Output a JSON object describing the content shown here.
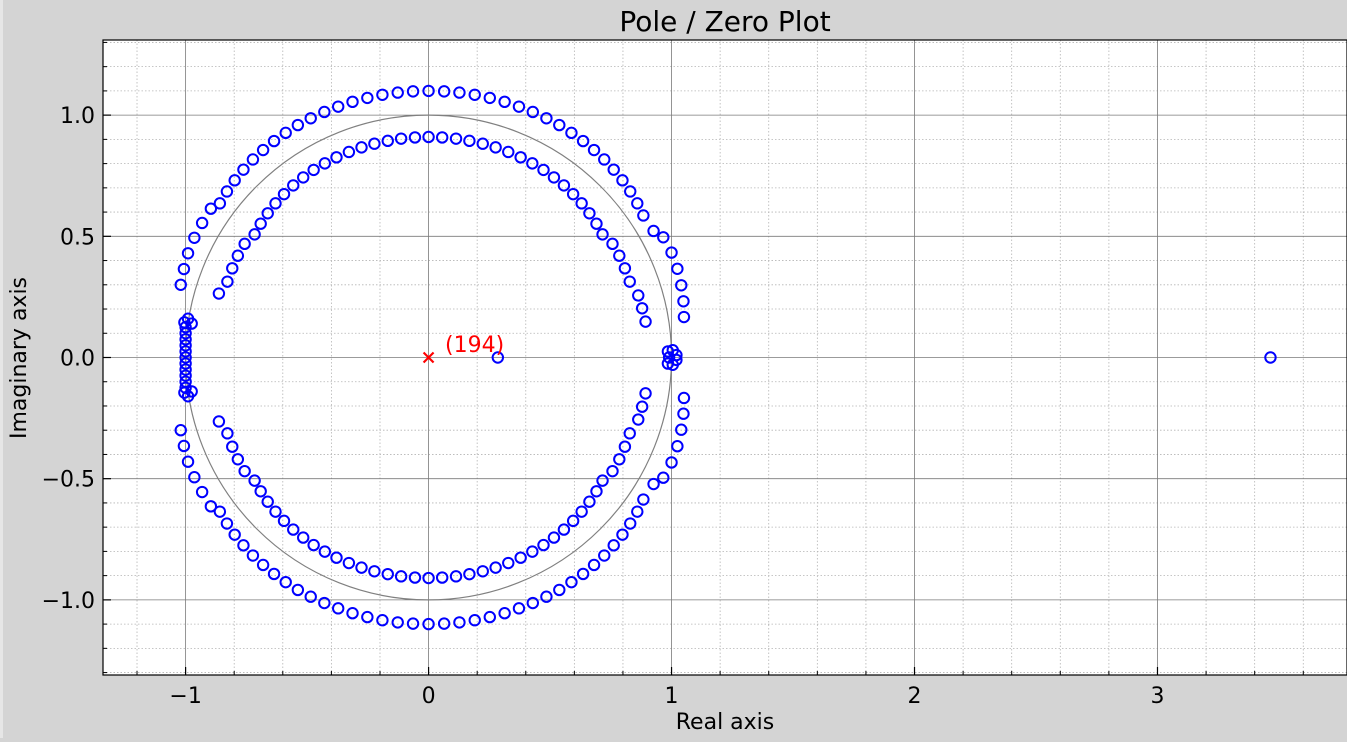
{
  "chart_data": {
    "type": "scatter",
    "title": "Pole / Zero Plot",
    "xlabel": "Real axis",
    "ylabel": "Imaginary axis",
    "xlim": [
      -1.34,
      3.78
    ],
    "ylim": [
      -1.31,
      1.31
    ],
    "x_ticks": [
      {
        "value": -1,
        "label": "−1"
      },
      {
        "value": 0,
        "label": "0"
      },
      {
        "value": 1,
        "label": "1"
      },
      {
        "value": 2,
        "label": "2"
      },
      {
        "value": 3,
        "label": "3"
      }
    ],
    "y_ticks": [
      {
        "value": -1.0,
        "label": "−1.0"
      },
      {
        "value": -0.5,
        "label": "−0.5"
      },
      {
        "value": 0.0,
        "label": "0.0"
      },
      {
        "value": 0.5,
        "label": "0.5"
      },
      {
        "value": 1.0,
        "label": "1.0"
      }
    ],
    "grid": true,
    "minor_grid": true,
    "unit_circle": true,
    "colors": {
      "zeros": "#0000ff",
      "poles": "#ff0000",
      "unit_circle": "#808080",
      "grid_major": "#7a7a7a",
      "grid_minor": "#b4b4b4",
      "figure_background": "#d4d4d4",
      "plot_background": "#ffffff"
    },
    "series": [
      {
        "marker": "circle",
        "points": [
          [
            -0.0,
            1.1
          ],
          [
            0.064,
            1.098
          ],
          [
            0.127,
            1.093
          ],
          [
            0.19,
            1.084
          ],
          [
            0.252,
            1.071
          ],
          [
            0.313,
            1.055
          ],
          [
            0.372,
            1.035
          ],
          [
            0.429,
            1.013
          ],
          [
            0.485,
            0.987
          ],
          [
            0.538,
            0.959
          ],
          [
            0.588,
            0.927
          ],
          [
            0.636,
            0.893
          ],
          [
            0.681,
            0.856
          ],
          [
            0.723,
            0.817
          ],
          [
            0.762,
            0.775
          ],
          [
            0.798,
            0.731
          ],
          [
            0.83,
            0.685
          ],
          [
            0.859,
            0.636
          ],
          [
            0.884,
            0.586
          ],
          [
            0.926,
            0.522
          ],
          [
            0.966,
            0.496
          ],
          [
            1.0,
            0.433
          ],
          [
            1.024,
            0.366
          ],
          [
            1.04,
            0.298
          ],
          [
            1.049,
            0.232
          ],
          [
            1.051,
            0.167
          ],
          [
            0.0,
            0.91
          ],
          [
            0.056,
            0.908
          ],
          [
            0.113,
            0.903
          ],
          [
            0.168,
            0.894
          ],
          [
            0.223,
            0.882
          ],
          [
            0.276,
            0.867
          ],
          [
            0.328,
            0.848
          ],
          [
            0.379,
            0.826
          ],
          [
            0.427,
            0.801
          ],
          [
            0.473,
            0.774
          ],
          [
            0.516,
            0.743
          ],
          [
            0.557,
            0.71
          ],
          [
            0.595,
            0.674
          ],
          [
            0.63,
            0.636
          ],
          [
            0.662,
            0.595
          ],
          [
            0.691,
            0.552
          ],
          [
            0.716,
            0.508
          ],
          [
            0.757,
            0.469
          ],
          [
            0.785,
            0.42
          ],
          [
            0.808,
            0.368
          ],
          [
            0.828,
            0.313
          ],
          [
            0.863,
            0.256
          ],
          [
            0.879,
            0.203
          ],
          [
            0.893,
            0.148
          ],
          [
            -0.056,
            0.908
          ],
          [
            -0.113,
            0.903
          ],
          [
            -0.168,
            0.894
          ],
          [
            -0.223,
            0.882
          ],
          [
            -0.276,
            0.867
          ],
          [
            -0.328,
            0.848
          ],
          [
            -0.379,
            0.826
          ],
          [
            -0.427,
            0.801
          ],
          [
            -0.473,
            0.774
          ],
          [
            -0.516,
            0.743
          ],
          [
            -0.557,
            0.71
          ],
          [
            -0.595,
            0.674
          ],
          [
            -0.63,
            0.636
          ],
          [
            -0.662,
            0.595
          ],
          [
            -0.691,
            0.552
          ],
          [
            -0.716,
            0.508
          ],
          [
            -0.757,
            0.469
          ],
          [
            -0.785,
            0.42
          ],
          [
            -0.808,
            0.368
          ],
          [
            -0.828,
            0.313
          ],
          [
            -0.863,
            0.264
          ],
          [
            -0.064,
            1.098
          ],
          [
            -0.127,
            1.093
          ],
          [
            -0.19,
            1.084
          ],
          [
            -0.252,
            1.071
          ],
          [
            -0.313,
            1.055
          ],
          [
            -0.372,
            1.035
          ],
          [
            -0.429,
            1.013
          ],
          [
            -0.485,
            0.987
          ],
          [
            -0.538,
            0.959
          ],
          [
            -0.588,
            0.927
          ],
          [
            -0.636,
            0.893
          ],
          [
            -0.681,
            0.856
          ],
          [
            -0.723,
            0.817
          ],
          [
            -0.762,
            0.775
          ],
          [
            -0.798,
            0.731
          ],
          [
            -0.83,
            0.685
          ],
          [
            -0.859,
            0.636
          ],
          [
            -0.896,
            0.614
          ],
          [
            -0.932,
            0.555
          ],
          [
            -0.964,
            0.494
          ],
          [
            -0.99,
            0.43
          ],
          [
            -1.007,
            0.365
          ],
          [
            -1.02,
            0.3
          ],
          [
            -0.0,
            -1.1
          ],
          [
            0.064,
            -1.098
          ],
          [
            0.127,
            -1.093
          ],
          [
            0.19,
            -1.084
          ],
          [
            0.252,
            -1.071
          ],
          [
            0.313,
            -1.055
          ],
          [
            0.372,
            -1.035
          ],
          [
            0.429,
            -1.013
          ],
          [
            0.485,
            -0.987
          ],
          [
            0.538,
            -0.959
          ],
          [
            0.588,
            -0.927
          ],
          [
            0.636,
            -0.893
          ],
          [
            0.681,
            -0.856
          ],
          [
            0.723,
            -0.817
          ],
          [
            0.762,
            -0.775
          ],
          [
            0.798,
            -0.731
          ],
          [
            0.83,
            -0.685
          ],
          [
            0.859,
            -0.636
          ],
          [
            0.884,
            -0.586
          ],
          [
            0.926,
            -0.522
          ],
          [
            0.966,
            -0.496
          ],
          [
            1.0,
            -0.433
          ],
          [
            1.024,
            -0.366
          ],
          [
            1.04,
            -0.298
          ],
          [
            1.049,
            -0.232
          ],
          [
            1.051,
            -0.167
          ],
          [
            0.0,
            -0.91
          ],
          [
            0.056,
            -0.908
          ],
          [
            0.113,
            -0.903
          ],
          [
            0.168,
            -0.894
          ],
          [
            0.223,
            -0.882
          ],
          [
            0.276,
            -0.867
          ],
          [
            0.328,
            -0.848
          ],
          [
            0.379,
            -0.826
          ],
          [
            0.427,
            -0.801
          ],
          [
            0.473,
            -0.774
          ],
          [
            0.516,
            -0.743
          ],
          [
            0.557,
            -0.71
          ],
          [
            0.595,
            -0.674
          ],
          [
            0.63,
            -0.636
          ],
          [
            0.662,
            -0.595
          ],
          [
            0.691,
            -0.552
          ],
          [
            0.716,
            -0.508
          ],
          [
            0.757,
            -0.469
          ],
          [
            0.785,
            -0.42
          ],
          [
            0.808,
            -0.368
          ],
          [
            0.828,
            -0.313
          ],
          [
            0.863,
            -0.256
          ],
          [
            0.879,
            -0.203
          ],
          [
            0.893,
            -0.148
          ],
          [
            -0.056,
            -0.908
          ],
          [
            -0.113,
            -0.903
          ],
          [
            -0.168,
            -0.894
          ],
          [
            -0.223,
            -0.882
          ],
          [
            -0.276,
            -0.867
          ],
          [
            -0.328,
            -0.848
          ],
          [
            -0.379,
            -0.826
          ],
          [
            -0.427,
            -0.801
          ],
          [
            -0.473,
            -0.774
          ],
          [
            -0.516,
            -0.743
          ],
          [
            -0.557,
            -0.71
          ],
          [
            -0.595,
            -0.674
          ],
          [
            -0.63,
            -0.636
          ],
          [
            -0.662,
            -0.595
          ],
          [
            -0.691,
            -0.552
          ],
          [
            -0.716,
            -0.508
          ],
          [
            -0.757,
            -0.469
          ],
          [
            -0.785,
            -0.42
          ],
          [
            -0.808,
            -0.368
          ],
          [
            -0.828,
            -0.313
          ],
          [
            -0.863,
            -0.264
          ],
          [
            -0.064,
            -1.098
          ],
          [
            -0.127,
            -1.093
          ],
          [
            -0.19,
            -1.084
          ],
          [
            -0.252,
            -1.071
          ],
          [
            -0.313,
            -1.055
          ],
          [
            -0.372,
            -1.035
          ],
          [
            -0.429,
            -1.013
          ],
          [
            -0.485,
            -0.987
          ],
          [
            -0.538,
            -0.959
          ],
          [
            -0.588,
            -0.927
          ],
          [
            -0.636,
            -0.893
          ],
          [
            -0.681,
            -0.856
          ],
          [
            -0.723,
            -0.817
          ],
          [
            -0.762,
            -0.775
          ],
          [
            -0.798,
            -0.731
          ],
          [
            -0.83,
            -0.685
          ],
          [
            -0.859,
            -0.636
          ],
          [
            -0.896,
            -0.614
          ],
          [
            -0.932,
            -0.555
          ],
          [
            -0.964,
            -0.494
          ],
          [
            -0.99,
            -0.43
          ],
          [
            -1.007,
            -0.365
          ],
          [
            -1.02,
            -0.3
          ],
          [
            -1.0,
            0.0
          ],
          [
            -1.0,
            0.025
          ],
          [
            -1.0,
            0.05
          ],
          [
            -1.0,
            0.075
          ],
          [
            -1.0,
            0.1
          ],
          [
            -1.0,
            0.125
          ],
          [
            -1.0,
            -0.025
          ],
          [
            -1.0,
            -0.05
          ],
          [
            -1.0,
            -0.075
          ],
          [
            -1.0,
            -0.1
          ],
          [
            -1.0,
            -0.125
          ],
          [
            -1.005,
            0.145
          ],
          [
            -0.99,
            0.16
          ],
          [
            -0.975,
            0.14
          ],
          [
            -1.005,
            -0.145
          ],
          [
            -0.99,
            -0.16
          ],
          [
            -0.975,
            -0.14
          ],
          [
            0.985,
            0.025
          ],
          [
            1.005,
            0.03
          ],
          [
            1.02,
            0.01
          ],
          [
            0.985,
            -0.025
          ],
          [
            1.005,
            -0.03
          ],
          [
            1.02,
            -0.01
          ],
          [
            0.99,
            0.0
          ],
          [
            0.285,
            0.0
          ],
          [
            3.465,
            0.0
          ]
        ]
      },
      {
        "marker": "x",
        "points": [
          [
            0.0,
            0.0
          ]
        ]
      }
    ],
    "annotations": [
      {
        "text": "(194)",
        "x": 0.0,
        "y": 0.0
      }
    ]
  }
}
